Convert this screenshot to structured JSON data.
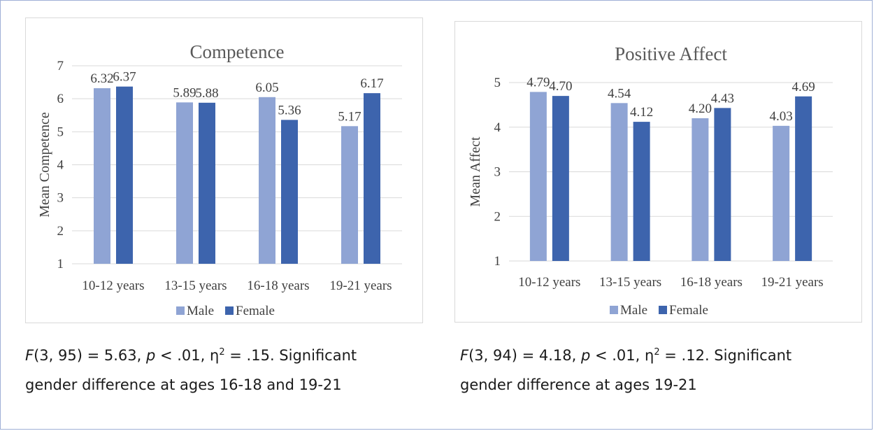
{
  "colors": {
    "male": "#8fa4d4",
    "female": "#3d64ad",
    "grid": "#d9d9d9",
    "text": "#404040"
  },
  "chart_data": [
    {
      "type": "bar",
      "title": "Competence",
      "ylabel": "Mean Competence",
      "xlabel": "",
      "categories": [
        "10-12 years",
        "13-15 years",
        "16-18 years",
        "19-21 years"
      ],
      "series": [
        {
          "name": "Male",
          "values": [
            6.32,
            5.89,
            6.05,
            5.17
          ],
          "labels": [
            "6.32",
            "5.89",
            "6.05",
            "5.17"
          ]
        },
        {
          "name": "Female",
          "values": [
            6.37,
            5.88,
            5.36,
            6.17
          ],
          "labels": [
            "6.37",
            "5.88",
            "5.36",
            "6.17"
          ]
        }
      ],
      "ylim": [
        1,
        7
      ],
      "yticks": [
        "1",
        "2",
        "3",
        "4",
        "5",
        "6",
        "7"
      ],
      "grid": true,
      "legend": "bottom"
    },
    {
      "type": "bar",
      "title": "Positive Affect",
      "ylabel": "Mean Affect",
      "xlabel": "",
      "categories": [
        "10-12 years",
        "13-15 years",
        "16-18 years",
        "19-21 years"
      ],
      "series": [
        {
          "name": "Male",
          "values": [
            4.79,
            4.54,
            4.2,
            4.03
          ],
          "labels": [
            "4.79",
            "4.54",
            "4.20",
            "4.03"
          ]
        },
        {
          "name": "Female",
          "values": [
            4.7,
            4.12,
            4.43,
            4.69
          ],
          "labels": [
            "4.70",
            "4.12",
            "4.43",
            "4.69"
          ]
        }
      ],
      "ylim": [
        1,
        5
      ],
      "yticks": [
        "1",
        "2",
        "3",
        "4",
        "5"
      ],
      "grid": true,
      "legend": "bottom"
    }
  ],
  "captions": [
    {
      "f_symbol": "F",
      "f_args": "(3, 95) = 5.63, ",
      "p_symbol": "p",
      "p_value": " < .01, η",
      "eta_exp": "2",
      "eta_value": " = .15. Significant",
      "line2": "gender difference at ages 16-18 and 19-21"
    },
    {
      "f_symbol": "F",
      "f_args": "(3, 94) = 4.18, ",
      "p_symbol": "p",
      "p_value": " < .01, η",
      "eta_exp": "2",
      "eta_value": " = .12. Significant",
      "line2": "gender difference at ages 19-21"
    }
  ]
}
